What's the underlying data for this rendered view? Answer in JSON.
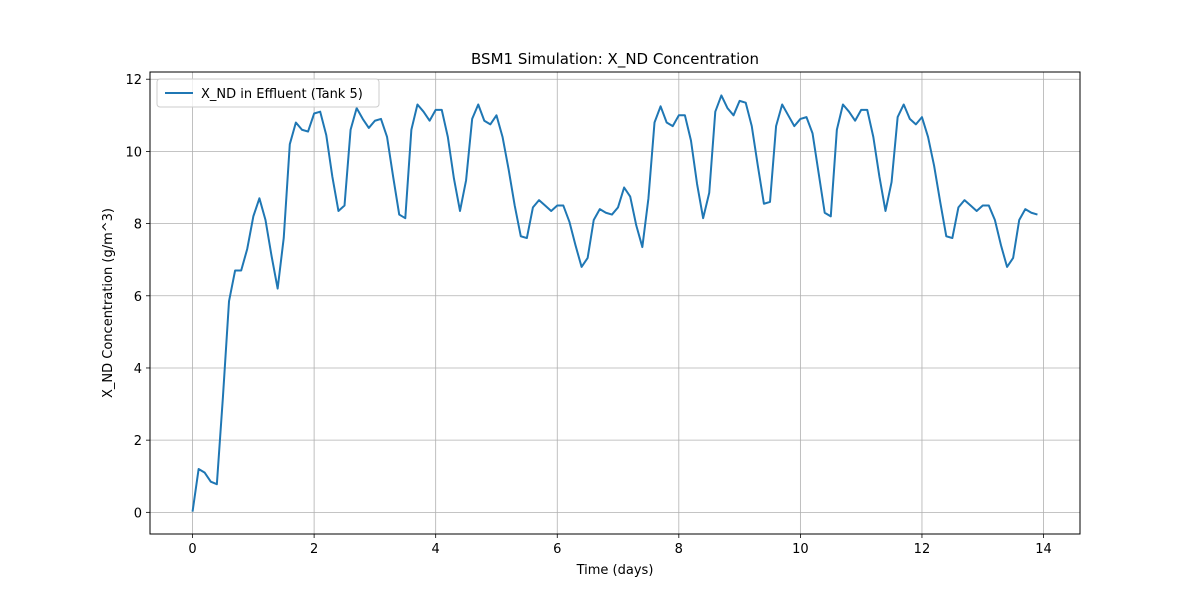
{
  "chart_data": {
    "type": "line",
    "title": "BSM1 Simulation: X_ND Concentration",
    "xlabel": "Time (days)",
    "ylabel": "X_ND Concentration (g/m^3)",
    "xlim": [
      -0.7,
      14.6
    ],
    "ylim": [
      -0.6,
      12.2
    ],
    "xticks": [
      0,
      2,
      4,
      6,
      8,
      10,
      12,
      14
    ],
    "yticks": [
      0,
      2,
      4,
      6,
      8,
      10,
      12
    ],
    "grid": true,
    "legend_position": "upper-left",
    "colors": {
      "series": "#1f77b4",
      "grid": "#b0b0b0",
      "axis": "#000000"
    },
    "series": [
      {
        "name": "X_ND in Effluent (Tank 5)",
        "x": [
          0.0,
          0.1,
          0.2,
          0.3,
          0.4,
          0.5,
          0.6,
          0.7,
          0.8,
          0.9,
          1.0,
          1.1,
          1.2,
          1.3,
          1.4,
          1.5,
          1.6,
          1.7,
          1.8,
          1.9,
          2.0,
          2.1,
          2.2,
          2.3,
          2.4,
          2.5,
          2.6,
          2.7,
          2.8,
          2.9,
          3.0,
          3.1,
          3.2,
          3.3,
          3.4,
          3.5,
          3.6,
          3.7,
          3.8,
          3.9,
          4.0,
          4.1,
          4.2,
          4.3,
          4.4,
          4.5,
          4.6,
          4.7,
          4.8,
          4.9,
          5.0,
          5.1,
          5.2,
          5.3,
          5.4,
          5.5,
          5.6,
          5.7,
          5.8,
          5.9,
          6.0,
          6.1,
          6.2,
          6.3,
          6.4,
          6.5,
          6.6,
          6.7,
          6.8,
          6.9,
          7.0,
          7.1,
          7.2,
          7.3,
          7.4,
          7.5,
          7.6,
          7.7,
          7.8,
          7.9,
          8.0,
          8.1,
          8.2,
          8.3,
          8.4,
          8.5,
          8.6,
          8.7,
          8.8,
          8.9,
          9.0,
          9.1,
          9.2,
          9.3,
          9.4,
          9.5,
          9.6,
          9.7,
          9.8,
          9.9,
          10.0,
          10.1,
          10.2,
          10.3,
          10.4,
          10.5,
          10.6,
          10.7,
          10.8,
          10.9,
          11.0,
          11.1,
          11.2,
          11.3,
          11.4,
          11.5,
          11.6,
          11.7,
          11.8,
          11.9,
          12.0,
          12.1,
          12.2,
          12.3,
          12.4,
          12.5,
          12.6,
          12.7,
          12.8,
          12.9,
          13.0,
          13.1,
          13.2,
          13.3,
          13.4,
          13.5,
          13.6,
          13.7,
          13.8,
          13.9
        ],
        "values": [
          0.02,
          1.2,
          1.1,
          0.85,
          0.78,
          3.2,
          5.85,
          6.7,
          6.7,
          7.3,
          8.2,
          8.7,
          8.1,
          7.1,
          6.2,
          7.6,
          10.2,
          10.8,
          10.6,
          10.55,
          11.05,
          11.1,
          10.45,
          9.3,
          8.35,
          8.5,
          10.6,
          11.2,
          10.9,
          10.65,
          10.85,
          10.9,
          10.4,
          9.3,
          8.25,
          8.15,
          10.6,
          11.3,
          11.1,
          10.85,
          11.15,
          11.15,
          10.4,
          9.25,
          8.35,
          9.2,
          10.9,
          11.3,
          10.85,
          10.75,
          11.0,
          10.4,
          9.5,
          8.5,
          7.65,
          7.6,
          8.45,
          8.65,
          8.5,
          8.35,
          8.5,
          8.5,
          8.05,
          7.4,
          6.8,
          7.05,
          8.1,
          8.4,
          8.3,
          8.25,
          8.45,
          9.0,
          8.75,
          7.95,
          7.35,
          8.7,
          10.8,
          11.25,
          10.8,
          10.7,
          11.0,
          11.0,
          10.3,
          9.1,
          8.15,
          8.85,
          11.1,
          11.55,
          11.2,
          11.0,
          11.4,
          11.35,
          10.7,
          9.6,
          8.55,
          8.6,
          10.7,
          11.3,
          11.0,
          10.7,
          10.9,
          10.95,
          10.5,
          9.4,
          8.3,
          8.2,
          10.6,
          11.3,
          11.1,
          10.85,
          11.15,
          11.15,
          10.4,
          9.3,
          8.35,
          9.15,
          10.95,
          11.3,
          10.9,
          10.75,
          10.95,
          10.4,
          9.6,
          8.6,
          7.65,
          7.6,
          8.45,
          8.65,
          8.5,
          8.35,
          8.5,
          8.5,
          8.1,
          7.4,
          6.8,
          7.05,
          8.1,
          8.4,
          8.3,
          8.25
        ]
      }
    ]
  }
}
